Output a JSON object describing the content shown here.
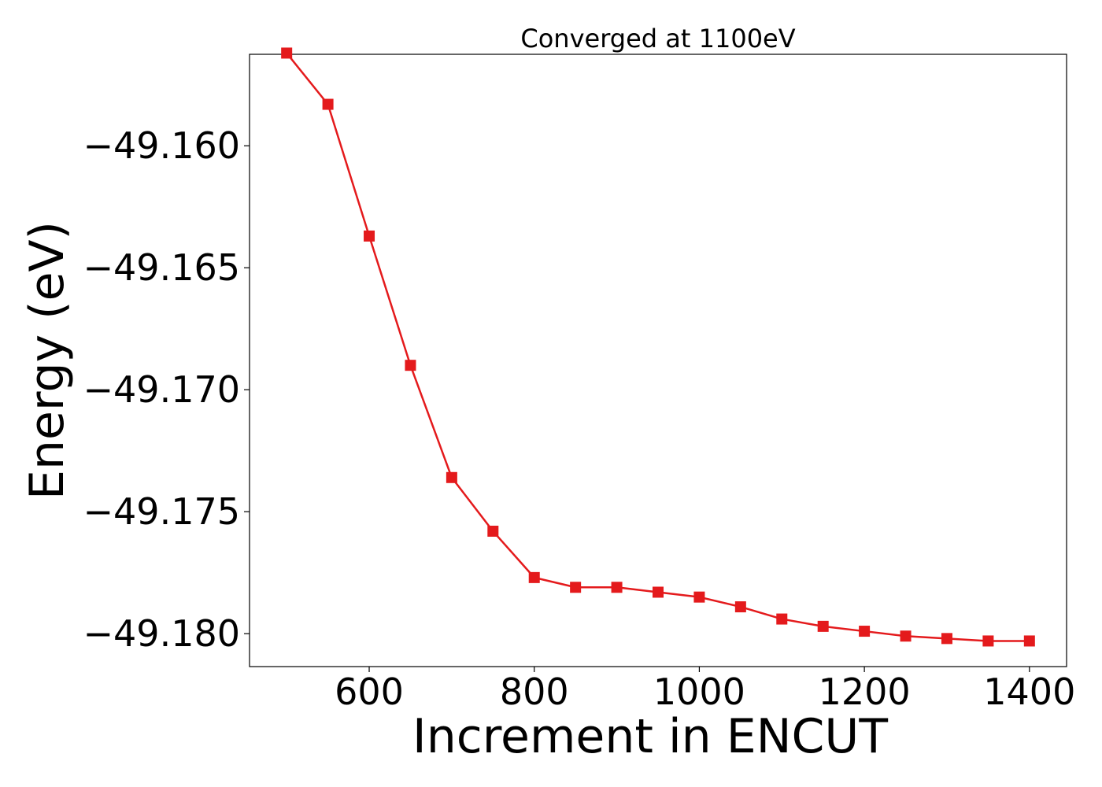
{
  "chart_data": {
    "type": "line",
    "title": "Converged at 1100eV",
    "xlabel": "Increment in ENCUT",
    "ylabel": "Energy (eV)",
    "xlim": [
      455,
      1445
    ],
    "ylim": [
      -49.18135,
      -49.15625
    ],
    "xticks": [
      600,
      800,
      1000,
      1200,
      1400
    ],
    "xtick_labels": [
      "600",
      "800",
      "1000",
      "1200",
      "1400"
    ],
    "yticks": [
      -49.16,
      -49.165,
      -49.17,
      -49.175,
      -49.18
    ],
    "ytick_labels": [
      "−49.160",
      "−49.165",
      "−49.170",
      "−49.175",
      "−49.180"
    ],
    "grid": false,
    "legend": "none",
    "series": [
      {
        "color": "#e41a1c",
        "marker": "square",
        "x": [
          500,
          550,
          600,
          650,
          700,
          750,
          800,
          850,
          900,
          950,
          1000,
          1050,
          1100,
          1150,
          1200,
          1250,
          1300,
          1350,
          1400
        ],
        "y": [
          -49.1562,
          -49.1583,
          -49.1637,
          -49.169,
          -49.1736,
          -49.1758,
          -49.1777,
          -49.1781,
          -49.1781,
          -49.1783,
          -49.1785,
          -49.1789,
          -49.1794,
          -49.1797,
          -49.1799,
          -49.1801,
          -49.1802,
          -49.1803,
          -49.1803
        ]
      }
    ]
  }
}
